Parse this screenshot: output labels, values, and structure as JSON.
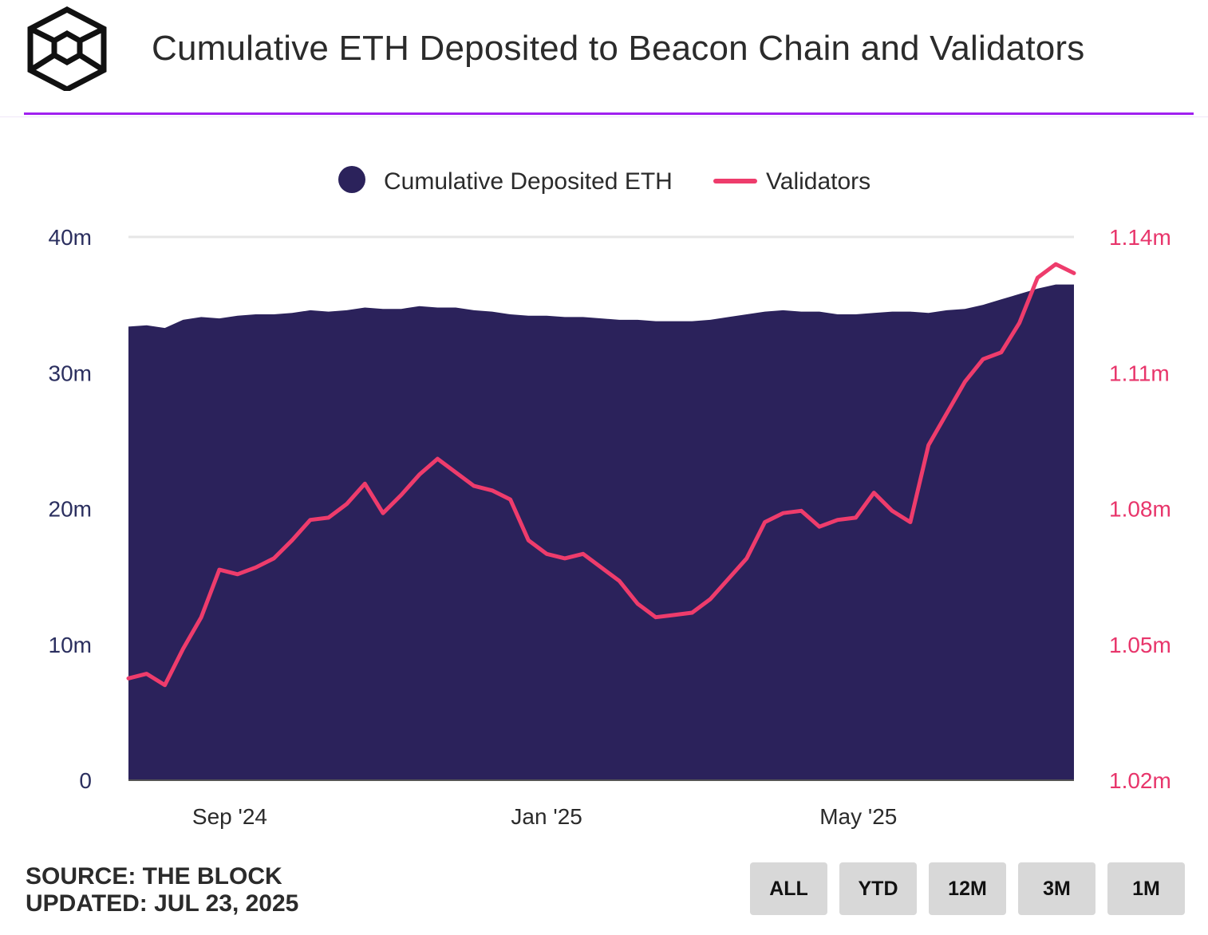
{
  "header": {
    "title": "Cumulative ETH Deposited to Beacon Chain and Validators"
  },
  "colors": {
    "area": "#2b225b",
    "validators": "#ee3c6c",
    "accent_divider": "#a020f0",
    "button_bg": "#d8d8d8"
  },
  "chart_data": {
    "type": "area",
    "title": "Cumulative ETH Deposited to Beacon Chain and Validators",
    "legend_position": "top-center",
    "x_range": [
      "2024-07-24",
      "2025-07-23"
    ],
    "x_ticks": [
      {
        "label": "Sep '24",
        "date": "2024-09-01"
      },
      {
        "label": "Jan '25",
        "date": "2025-01-01"
      },
      {
        "label": "May '25",
        "date": "2025-05-01"
      }
    ],
    "y_left": {
      "ticks": [
        "0",
        "10m",
        "20m",
        "30m",
        "40m"
      ],
      "range": [
        0,
        40000000
      ]
    },
    "y_right": {
      "ticks": [
        "1.02m",
        "1.05m",
        "1.08m",
        "1.11m",
        "1.14m"
      ],
      "range": [
        1020000,
        1140000
      ]
    },
    "series": [
      {
        "name": "Cumulative Deposited ETH",
        "kind": "area",
        "axis": "left",
        "x": [
          "2024-07-24",
          "2024-07-31",
          "2024-08-07",
          "2024-08-14",
          "2024-08-21",
          "2024-08-28",
          "2024-09-04",
          "2024-09-11",
          "2024-09-18",
          "2024-09-25",
          "2024-10-02",
          "2024-10-09",
          "2024-10-16",
          "2024-10-23",
          "2024-10-30",
          "2024-11-06",
          "2024-11-13",
          "2024-11-20",
          "2024-11-27",
          "2024-12-04",
          "2024-12-11",
          "2024-12-18",
          "2024-12-25",
          "2025-01-01",
          "2025-01-08",
          "2025-01-15",
          "2025-01-22",
          "2025-01-29",
          "2025-02-05",
          "2025-02-12",
          "2025-02-19",
          "2025-02-26",
          "2025-03-05",
          "2025-03-12",
          "2025-03-19",
          "2025-03-26",
          "2025-04-02",
          "2025-04-09",
          "2025-04-16",
          "2025-04-23",
          "2025-04-30",
          "2025-05-07",
          "2025-05-14",
          "2025-05-21",
          "2025-05-28",
          "2025-06-04",
          "2025-06-11",
          "2025-06-18",
          "2025-06-25",
          "2025-07-02",
          "2025-07-09",
          "2025-07-16",
          "2025-07-23"
        ],
        "values": [
          33.4,
          33.5,
          33.3,
          33.9,
          34.1,
          34.0,
          34.2,
          34.3,
          34.3,
          34.4,
          34.6,
          34.5,
          34.6,
          34.8,
          34.7,
          34.7,
          34.9,
          34.8,
          34.8,
          34.6,
          34.5,
          34.3,
          34.2,
          34.2,
          34.1,
          34.1,
          34.0,
          33.9,
          33.9,
          33.8,
          33.8,
          33.8,
          33.9,
          34.1,
          34.3,
          34.5,
          34.6,
          34.5,
          34.5,
          34.3,
          34.3,
          34.4,
          34.5,
          34.5,
          34.4,
          34.6,
          34.7,
          35.0,
          35.4,
          35.8,
          36.2,
          36.5,
          36.5
        ],
        "unit_multiplier": 1000000
      },
      {
        "name": "Validators",
        "kind": "line",
        "axis": "right",
        "x": [
          "2024-07-24",
          "2024-07-31",
          "2024-08-07",
          "2024-08-14",
          "2024-08-21",
          "2024-08-28",
          "2024-09-04",
          "2024-09-11",
          "2024-09-18",
          "2024-09-25",
          "2024-10-02",
          "2024-10-09",
          "2024-10-16",
          "2024-10-23",
          "2024-10-30",
          "2024-11-06",
          "2024-11-13",
          "2024-11-20",
          "2024-11-27",
          "2024-12-04",
          "2024-12-11",
          "2024-12-18",
          "2024-12-25",
          "2025-01-01",
          "2025-01-08",
          "2025-01-15",
          "2025-01-22",
          "2025-01-29",
          "2025-02-05",
          "2025-02-12",
          "2025-02-19",
          "2025-02-26",
          "2025-03-05",
          "2025-03-12",
          "2025-03-19",
          "2025-03-26",
          "2025-04-02",
          "2025-04-09",
          "2025-04-16",
          "2025-04-23",
          "2025-04-30",
          "2025-05-07",
          "2025-05-14",
          "2025-05-21",
          "2025-05-28",
          "2025-06-04",
          "2025-06-11",
          "2025-06-18",
          "2025-06-25",
          "2025-07-02",
          "2025-07-09",
          "2025-07-16",
          "2025-07-23"
        ],
        "values": [
          1042500,
          1043500,
          1041000,
          1049000,
          1056000,
          1066500,
          1065500,
          1067000,
          1069000,
          1073000,
          1077500,
          1078000,
          1081000,
          1085500,
          1079000,
          1083000,
          1087500,
          1091000,
          1088000,
          1085000,
          1084000,
          1082000,
          1073000,
          1070000,
          1069000,
          1070000,
          1067000,
          1064000,
          1059000,
          1056000,
          1056500,
          1057000,
          1060000,
          1064500,
          1069000,
          1077000,
          1079000,
          1079500,
          1076000,
          1077500,
          1078000,
          1083500,
          1079500,
          1077000,
          1094000,
          1101000,
          1108000,
          1113000,
          1114500,
          1121000,
          1131000,
          1134000,
          1132000
        ]
      }
    ]
  },
  "footer": {
    "source": "SOURCE: THE BLOCK",
    "updated": "UPDATED: JUL 23, 2025"
  },
  "range_buttons": [
    "ALL",
    "YTD",
    "12M",
    "3M",
    "1M"
  ]
}
